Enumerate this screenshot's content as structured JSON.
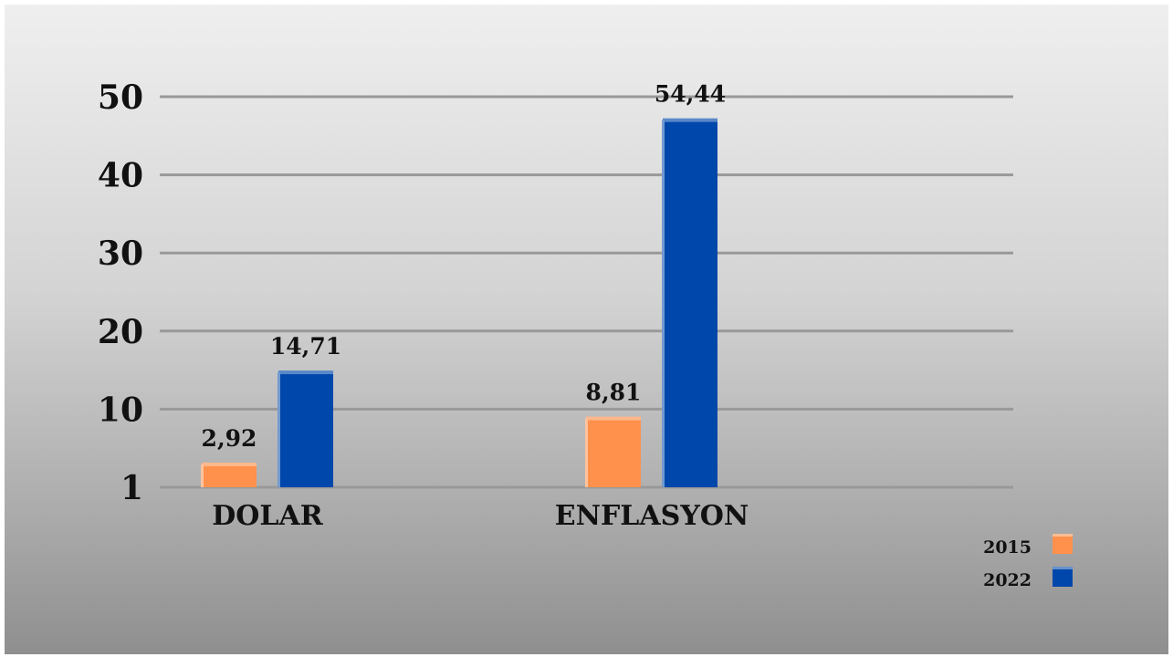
{
  "chart_data": {
    "type": "bar",
    "categories": [
      "DOLAR",
      "ENFLASYON"
    ],
    "series": [
      {
        "name": "2015",
        "values": [
          2.92,
          8.81
        ],
        "labels": [
          "2,92",
          "8,81"
        ],
        "color": "#ff914d"
      },
      {
        "name": "2022",
        "values": [
          14.71,
          54.44
        ],
        "labels": [
          "14,71",
          "54,44"
        ],
        "color": "#0047ab"
      }
    ],
    "y_ticks": [
      1,
      10,
      20,
      30,
      40,
      50
    ],
    "ylim": [
      0,
      50
    ],
    "grid": true,
    "legend_position": "bottom-right",
    "title": "",
    "xlabel": "",
    "ylabel": ""
  }
}
